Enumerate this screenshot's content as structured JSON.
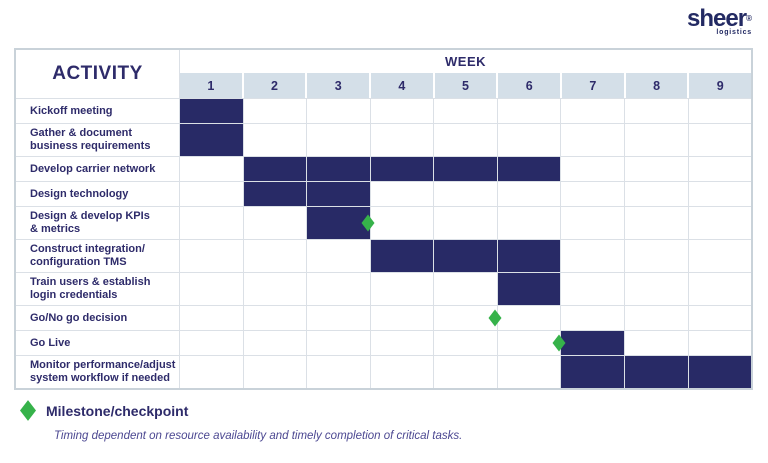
{
  "logo": {
    "name": "sheer",
    "reg_mark": "®",
    "tagline": "logistics"
  },
  "table": {
    "activity_header": "ACTIVITY",
    "week_header": "WEEK",
    "weeks": [
      "1",
      "2",
      "3",
      "4",
      "5",
      "6",
      "7",
      "8",
      "9"
    ],
    "rows": [
      {
        "label": "Kickoff meeting",
        "bar_start_week": 1,
        "bar_end_week": 1
      },
      {
        "label": "Gather & document\nbusiness requirements",
        "bar_start_week": 1,
        "bar_end_week": 1
      },
      {
        "label": "Develop carrier network",
        "bar_start_week": 2,
        "bar_end_week": 6
      },
      {
        "label": "Design technology",
        "bar_start_week": 2,
        "bar_end_week": 3
      },
      {
        "label": "Design & develop KPIs\n& metrics",
        "bar_start_week": 3,
        "bar_end_week": 3,
        "milestone_after_week": 3
      },
      {
        "label": "Construct integration/\nconfiguration TMS",
        "bar_start_week": 4,
        "bar_end_week": 6
      },
      {
        "label": "Train users & establish\nlogin credentials",
        "bar_start_week": 6,
        "bar_end_week": 6
      },
      {
        "label": "Go/No go decision",
        "milestone_after_week": 5
      },
      {
        "label": "Go Live",
        "bar_start_week": 7,
        "bar_end_week": 7,
        "milestone_after_week": 6
      },
      {
        "label": "Monitor performance/adjust\nsystem workflow if needed",
        "bar_start_week": 7,
        "bar_end_week": 9
      }
    ]
  },
  "legend": {
    "marker": "green-diamond-icon",
    "label": "Milestone/checkpoint"
  },
  "note": "Timing dependent on resource availability and timely completion of critical tasks.",
  "colors": {
    "bar_navy": "#282a66",
    "text_navy": "#2e2b6a",
    "header_blue": "#d4dfe8",
    "grid_line": "#dbe0e6",
    "outer_border": "#c9d2d9",
    "milestone_green": "#36b24a",
    "note_purple": "#4b4791"
  },
  "chart_data": {
    "type": "bar",
    "subtype": "gantt",
    "x_unit": "week",
    "x_ticks": [
      1,
      2,
      3,
      4,
      5,
      6,
      7,
      8,
      9
    ],
    "x_range": [
      1,
      9
    ],
    "grid": true,
    "legend": [
      {
        "marker": "green-diamond",
        "label": "Milestone/checkpoint"
      }
    ],
    "tasks": [
      {
        "activity": "Kickoff meeting",
        "start_week": 1,
        "end_week": 1
      },
      {
        "activity": "Gather & document business requirements",
        "start_week": 1,
        "end_week": 1
      },
      {
        "activity": "Develop carrier network",
        "start_week": 2,
        "end_week": 6
      },
      {
        "activity": "Design technology",
        "start_week": 2,
        "end_week": 3
      },
      {
        "activity": "Design & develop KPIs & metrics",
        "start_week": 3,
        "end_week": 3,
        "milestone_at_end_of_week": 3
      },
      {
        "activity": "Construct integration/configuration TMS",
        "start_week": 4,
        "end_week": 6
      },
      {
        "activity": "Train users & establish login credentials",
        "start_week": 6,
        "end_week": 6
      },
      {
        "activity": "Go/No go decision",
        "milestone_at_end_of_week": 5
      },
      {
        "activity": "Go Live",
        "start_week": 7,
        "end_week": 7,
        "milestone_at_end_of_week": 6
      },
      {
        "activity": "Monitor performance/adjust system workflow if needed",
        "start_week": 7,
        "end_week": 9
      }
    ],
    "note": "Timing dependent on resource availability and timely completion of critical tasks."
  }
}
